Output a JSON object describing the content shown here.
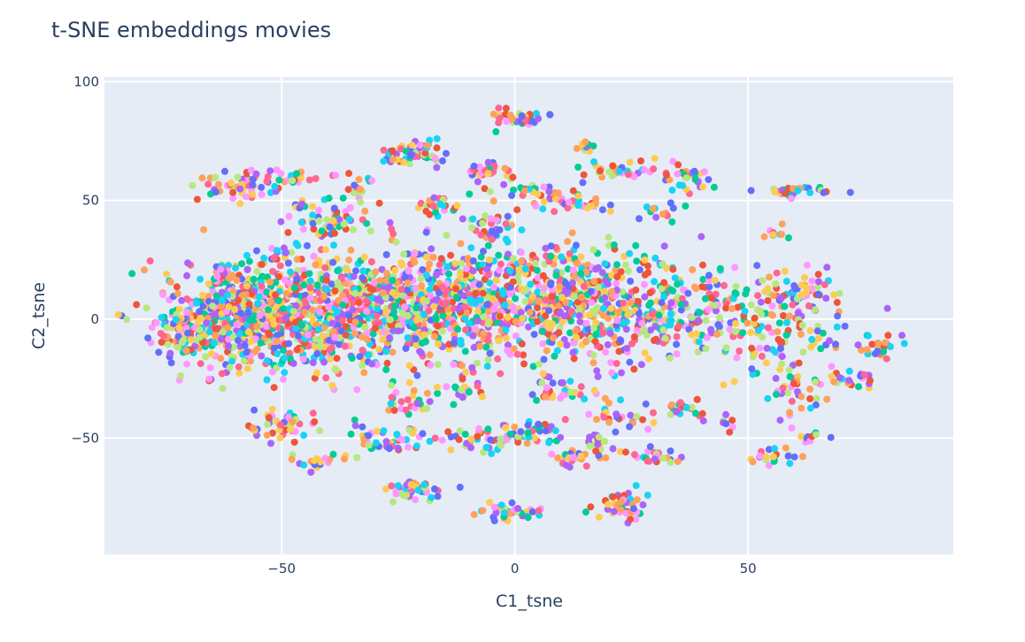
{
  "chart_data": {
    "type": "scatter",
    "title": "t-SNE embeddings movies",
    "xlabel": "C1_tsne",
    "ylabel": "C2_tsne",
    "xlim": [
      -88,
      94
    ],
    "ylim": [
      -99,
      102
    ],
    "x_ticks": [
      {
        "value": -50,
        "label": "−50"
      },
      {
        "value": 0,
        "label": "0"
      },
      {
        "value": 50,
        "label": "50"
      }
    ],
    "y_ticks": [
      {
        "value": 100,
        "label": "100"
      },
      {
        "value": 50,
        "label": "50"
      },
      {
        "value": 0,
        "label": "0"
      },
      {
        "value": -50,
        "label": "−50"
      }
    ],
    "grid": true,
    "legend": "none",
    "colors": {
      "plot_background": "#e5ecf6",
      "grid": "#ffffff",
      "text": "#2a3f5f",
      "palette": [
        "#636efa",
        "#ef553b",
        "#00cc96",
        "#ab63fa",
        "#ffa15a",
        "#19d3f3",
        "#ff6692",
        "#b6e880",
        "#ff97ff",
        "#fecb52"
      ]
    },
    "clusters": [
      {
        "x": -60,
        "y": 0,
        "sx": 8,
        "sy": 11,
        "n": 480
      },
      {
        "x": -42,
        "y": 3,
        "sx": 9,
        "sy": 13,
        "n": 420
      },
      {
        "x": -25,
        "y": 5,
        "sx": 9,
        "sy": 12,
        "n": 380
      },
      {
        "x": -8,
        "y": 8,
        "sx": 9,
        "sy": 13,
        "n": 340
      },
      {
        "x": 8,
        "y": 8,
        "sx": 9,
        "sy": 13,
        "n": 300
      },
      {
        "x": 22,
        "y": 5,
        "sx": 8,
        "sy": 12,
        "n": 240
      },
      {
        "x": 38,
        "y": 3,
        "sx": 8,
        "sy": 10,
        "n": 140
      },
      {
        "x": 57,
        "y": -3,
        "sx": 7,
        "sy": 12,
        "n": 140
      },
      {
        "x": -72,
        "y": -6,
        "sx": 3,
        "sy": 4,
        "n": 60
      },
      {
        "x": -60,
        "y": 56,
        "sx": 5,
        "sy": 4,
        "n": 55
      },
      {
        "x": -47,
        "y": 60,
        "sx": 3,
        "sy": 2,
        "n": 20
      },
      {
        "x": -40,
        "y": 42,
        "sx": 5,
        "sy": 4,
        "n": 60
      },
      {
        "x": -33,
        "y": 56,
        "sx": 2,
        "sy": 3,
        "n": 15
      },
      {
        "x": -22,
        "y": 70,
        "sx": 4,
        "sy": 3,
        "n": 55
      },
      {
        "x": -17,
        "y": 48,
        "sx": 3,
        "sy": 2,
        "n": 25
      },
      {
        "x": -6,
        "y": 62,
        "sx": 3,
        "sy": 2,
        "n": 30
      },
      {
        "x": -4,
        "y": 40,
        "sx": 3,
        "sy": 3,
        "n": 25
      },
      {
        "x": 0,
        "y": 85,
        "sx": 3,
        "sy": 2,
        "n": 40
      },
      {
        "x": 5,
        "y": 53,
        "sx": 4,
        "sy": 2,
        "n": 35
      },
      {
        "x": 15,
        "y": 73,
        "sx": 1.5,
        "sy": 1.5,
        "n": 12
      },
      {
        "x": 15,
        "y": 48,
        "sx": 3,
        "sy": 2,
        "n": 25
      },
      {
        "x": 22,
        "y": 62,
        "sx": 4,
        "sy": 2,
        "n": 30
      },
      {
        "x": 30,
        "y": 45,
        "sx": 2,
        "sy": 2,
        "n": 12
      },
      {
        "x": 37,
        "y": 60,
        "sx": 3,
        "sy": 3,
        "n": 35
      },
      {
        "x": 60,
        "y": 54,
        "sx": 4,
        "sy": 1.5,
        "n": 30
      },
      {
        "x": -50,
        "y": 28,
        "sx": 2,
        "sy": 2,
        "n": 12
      },
      {
        "x": -62,
        "y": 20,
        "sx": 2,
        "sy": 1.5,
        "n": 10
      },
      {
        "x": -50,
        "y": -45,
        "sx": 4,
        "sy": 4,
        "n": 45
      },
      {
        "x": -43,
        "y": -60,
        "sx": 3,
        "sy": 2,
        "n": 20
      },
      {
        "x": -27,
        "y": -50,
        "sx": 4,
        "sy": 3,
        "n": 45
      },
      {
        "x": -22,
        "y": -72,
        "sx": 4,
        "sy": 2,
        "n": 45
      },
      {
        "x": -22,
        "y": -35,
        "sx": 3,
        "sy": 3,
        "n": 25
      },
      {
        "x": -10,
        "y": -30,
        "sx": 3,
        "sy": 3,
        "n": 20
      },
      {
        "x": -5,
        "y": -50,
        "sx": 5,
        "sy": 3,
        "n": 55
      },
      {
        "x": 5,
        "y": -47,
        "sx": 3,
        "sy": 2,
        "n": 25
      },
      {
        "x": 0,
        "y": -82,
        "sx": 4,
        "sy": 2,
        "n": 40
      },
      {
        "x": 10,
        "y": -30,
        "sx": 4,
        "sy": 3,
        "n": 30
      },
      {
        "x": 12,
        "y": -58,
        "sx": 2,
        "sy": 2,
        "n": 20
      },
      {
        "x": 18,
        "y": -55,
        "sx": 2,
        "sy": 3,
        "n": 20
      },
      {
        "x": 23,
        "y": -78,
        "sx": 3,
        "sy": 3,
        "n": 40
      },
      {
        "x": 22,
        "y": -40,
        "sx": 3,
        "sy": 3,
        "n": 25
      },
      {
        "x": 30,
        "y": -58,
        "sx": 4,
        "sy": 1.5,
        "n": 25
      },
      {
        "x": 35,
        "y": -38,
        "sx": 3,
        "sy": 3,
        "n": 25
      },
      {
        "x": 45,
        "y": -44,
        "sx": 1.5,
        "sy": 1.5,
        "n": 8
      },
      {
        "x": 55,
        "y": -58,
        "sx": 3,
        "sy": 2,
        "n": 20
      },
      {
        "x": 63,
        "y": -50,
        "sx": 2,
        "sy": 1.5,
        "n": 10
      },
      {
        "x": 60,
        "y": -30,
        "sx": 3,
        "sy": 5,
        "n": 35
      },
      {
        "x": 72,
        "y": -25,
        "sx": 3,
        "sy": 2,
        "n": 20
      },
      {
        "x": 78,
        "y": -13,
        "sx": 3,
        "sy": 3,
        "n": 25
      },
      {
        "x": 55,
        "y": 36,
        "sx": 1.5,
        "sy": 1.5,
        "n": 10
      },
      {
        "x": 60,
        "y": 12,
        "sx": 3,
        "sy": 3,
        "n": 25
      }
    ]
  }
}
